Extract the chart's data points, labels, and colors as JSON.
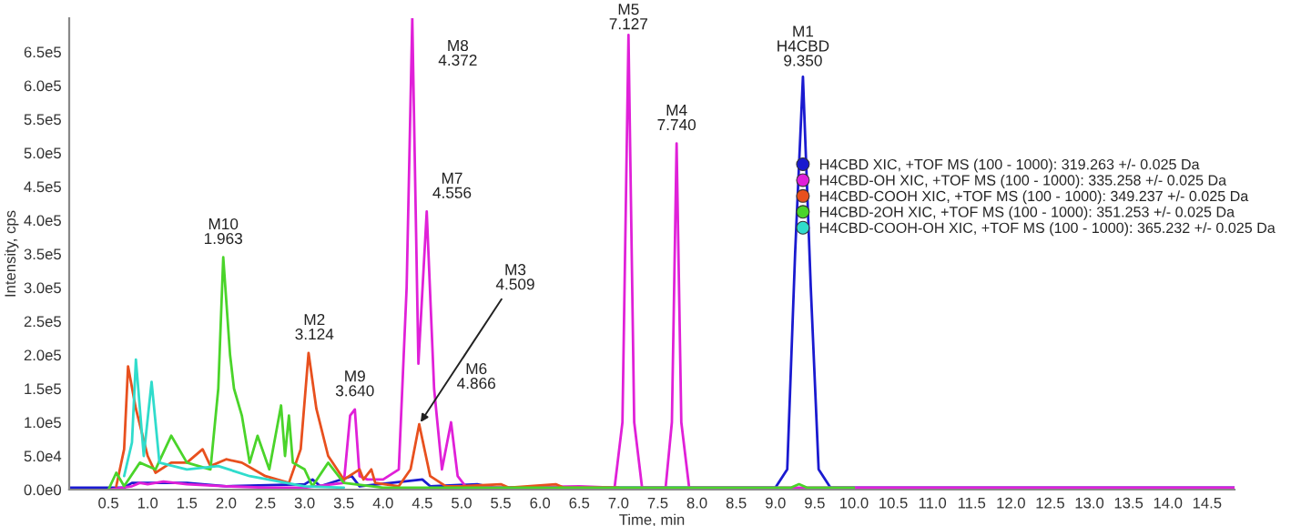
{
  "chart_data": {
    "type": "line",
    "xlabel": "Time, min",
    "ylabel": "Intensity, cps",
    "xlim": [
      0,
      14.85
    ],
    "ylim": [
      0,
      700000
    ],
    "xticks": [
      {
        "value": 0.5,
        "label": "0.5"
      },
      {
        "value": 1,
        "label": "1.0"
      },
      {
        "value": 1.5,
        "label": "1.5"
      },
      {
        "value": 2,
        "label": "2.0"
      },
      {
        "value": 2.5,
        "label": "2.5"
      },
      {
        "value": 3,
        "label": "3.0"
      },
      {
        "value": 3.5,
        "label": "3.5"
      },
      {
        "value": 4,
        "label": "4.0"
      },
      {
        "value": 4.5,
        "label": "4.5"
      },
      {
        "value": 5,
        "label": "5.0"
      },
      {
        "value": 5.5,
        "label": "5.5"
      },
      {
        "value": 6,
        "label": "6.0"
      },
      {
        "value": 6.5,
        "label": "6.5"
      },
      {
        "value": 7,
        "label": "7.0"
      },
      {
        "value": 7.5,
        "label": "7.5"
      },
      {
        "value": 8,
        "label": "8.0"
      },
      {
        "value": 8.5,
        "label": "8.5"
      },
      {
        "value": 9,
        "label": "9.0"
      },
      {
        "value": 9.5,
        "label": "9.5"
      },
      {
        "value": 10,
        "label": "10.0"
      },
      {
        "value": 10.5,
        "label": "10.5"
      },
      {
        "value": 11,
        "label": "11.0"
      },
      {
        "value": 11.5,
        "label": "11.5"
      },
      {
        "value": 12,
        "label": "12.0"
      },
      {
        "value": 12.5,
        "label": "12.5"
      },
      {
        "value": 13,
        "label": "13.0"
      },
      {
        "value": 13.5,
        "label": "13.5"
      },
      {
        "value": 14,
        "label": "14.0"
      },
      {
        "value": 14.5,
        "label": "14.5"
      }
    ],
    "yticks": [
      {
        "value": 0,
        "label": "0.0e0"
      },
      {
        "value": 50000,
        "label": "5.0e4"
      },
      {
        "value": 100000,
        "label": "1.0e5"
      },
      {
        "value": 150000,
        "label": "1.5e5"
      },
      {
        "value": 200000,
        "label": "2.0e5"
      },
      {
        "value": 250000,
        "label": "2.5e5"
      },
      {
        "value": 300000,
        "label": "3.0e5"
      },
      {
        "value": 350000,
        "label": "3.5e5"
      },
      {
        "value": 400000,
        "label": "4.0e5"
      },
      {
        "value": 450000,
        "label": "4.5e5"
      },
      {
        "value": 500000,
        "label": "5.0e5"
      },
      {
        "value": 550000,
        "label": "5.5e5"
      },
      {
        "value": 600000,
        "label": "6.0e5"
      },
      {
        "value": 650000,
        "label": "6.5e5"
      }
    ],
    "grid": false,
    "legend": "right",
    "marker": "none",
    "line_style": "solid",
    "series": [
      {
        "name": "H4CBD XIC, +TOF MS (100 - 1000): 319.263 +/- 0.025 Da",
        "color": "#1a1ad0",
        "x": [
          0,
          0.7,
          0.8,
          1.5,
          2.0,
          3.0,
          3.1,
          3.2,
          3.6,
          3.7,
          4.5,
          4.6,
          5.2,
          5.4,
          9.0,
          9.15,
          9.25,
          9.35,
          9.45,
          9.55,
          9.7,
          14.85
        ],
        "values": [
          3000,
          3000,
          10000,
          10000,
          5000,
          8000,
          15000,
          5000,
          20000,
          5000,
          15000,
          5000,
          8000,
          3000,
          3000,
          30000,
          350000,
          613000,
          300000,
          30000,
          3000,
          3000
        ]
      },
      {
        "name": "H4CBD-OH XIC, +TOF MS (100 - 1000): 335.258 +/- 0.025 Da",
        "color": "#e020d8",
        "x": [
          0.5,
          0.8,
          0.9,
          1.0,
          1.2,
          1.5,
          2.0,
          2.5,
          3.0,
          3.5,
          3.58,
          3.64,
          3.7,
          3.8,
          4.0,
          4.2,
          4.3,
          4.372,
          4.45,
          4.556,
          4.65,
          4.75,
          4.866,
          4.95,
          5.05,
          5.5,
          6.5,
          6.95,
          7.05,
          7.127,
          7.2,
          7.3,
          7.6,
          7.68,
          7.74,
          7.8,
          7.9,
          14.85
        ],
        "values": [
          0,
          5000,
          10000,
          8000,
          12000,
          8000,
          5000,
          3000,
          3000,
          10000,
          110000,
          119000,
          20000,
          15000,
          15000,
          30000,
          300000,
          700000,
          187000,
          413000,
          150000,
          30000,
          100000,
          20000,
          5000,
          3000,
          5000,
          3000,
          100000,
          675000,
          100000,
          3000,
          3000,
          100000,
          514000,
          100000,
          3000,
          3000
        ]
      },
      {
        "name": "H4CBD-COOH XIC, +TOF MS (100 - 1000): 349.237 +/- 0.025 Da",
        "color": "#e8501e",
        "x": [
          0.6,
          0.7,
          0.75,
          0.85,
          1.0,
          1.1,
          1.3,
          1.5,
          1.7,
          1.8,
          2.0,
          2.2,
          2.5,
          2.8,
          2.95,
          3.05,
          3.15,
          3.3,
          3.5,
          3.7,
          3.75,
          3.85,
          3.9,
          4.2,
          4.35,
          4.46,
          4.6,
          4.8,
          5.0,
          5.5,
          5.6,
          6.2,
          6.3,
          7.0
        ],
        "values": [
          5000,
          60000,
          183000,
          120000,
          50000,
          25000,
          40000,
          40000,
          60000,
          35000,
          45000,
          40000,
          20000,
          10000,
          60000,
          203000,
          120000,
          50000,
          15000,
          30000,
          15000,
          30000,
          10000,
          5000,
          30000,
          97000,
          20000,
          5000,
          5000,
          8000,
          3000,
          8000,
          3000,
          3000
        ]
      },
      {
        "name": "H4CBD-2OH XIC, +TOF MS (100 - 1000): 351.253 +/- 0.025 Da",
        "color": "#4ad42a",
        "x": [
          0.5,
          0.6,
          0.7,
          0.9,
          1.1,
          1.3,
          1.5,
          1.8,
          1.9,
          1.963,
          2.05,
          2.1,
          2.2,
          2.3,
          2.4,
          2.55,
          2.7,
          2.75,
          2.8,
          2.85,
          3.0,
          3.1,
          3.3,
          3.5,
          4.0,
          9.2,
          9.3,
          9.4,
          10.0
        ],
        "values": [
          0,
          25000,
          5000,
          40000,
          30000,
          80000,
          40000,
          30000,
          150000,
          345000,
          200000,
          150000,
          110000,
          40000,
          80000,
          30000,
          125000,
          50000,
          110000,
          40000,
          30000,
          5000,
          40000,
          10000,
          3000,
          3000,
          8000,
          3000,
          3000
        ]
      },
      {
        "name": "H4CBD-COOH-OH XIC, +TOF MS (100 - 1000): 365.232 +/- 0.025 Da",
        "color": "#30dccc",
        "x": [
          0.7,
          0.8,
          0.85,
          0.95,
          1.05,
          1.15,
          1.5,
          1.9,
          2.3,
          3.0,
          3.5
        ],
        "values": [
          20000,
          70000,
          193000,
          50000,
          160000,
          40000,
          30000,
          35000,
          20000,
          5000,
          3000
        ]
      }
    ],
    "annotations": [
      {
        "text": "M10 1.963",
        "x": 1.963,
        "y": 345000
      },
      {
        "text": "M2 3.124",
        "x": 3.124,
        "y": 203000
      },
      {
        "text": "M9 3.640",
        "x": 3.64,
        "y": 119000
      },
      {
        "text": "M8 4.372",
        "x": 4.372,
        "y": 700000
      },
      {
        "text": "M7 4.556",
        "x": 4.556,
        "y": 413000
      },
      {
        "text": "M3 4.509",
        "x": 4.46,
        "y": 97000
      },
      {
        "text": "M6 4.866",
        "x": 4.866,
        "y": 100000
      },
      {
        "text": "M5 7.127",
        "x": 7.127,
        "y": 675000
      },
      {
        "text": "M4 7.740",
        "x": 7.74,
        "y": 514000
      },
      {
        "text": "M1 H4CBD 9.350",
        "x": 9.35,
        "y": 613000
      }
    ]
  }
}
